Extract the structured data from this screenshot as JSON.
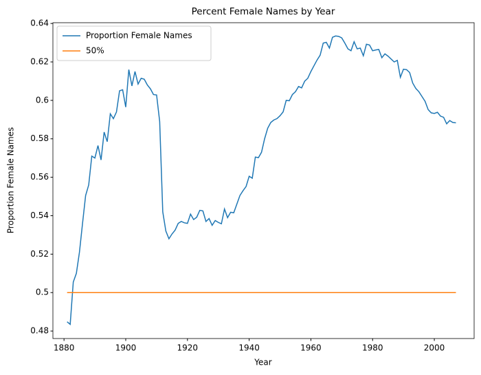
{
  "chart_data": {
    "type": "line",
    "title": "Percent Female Names by Year",
    "xlabel": "Year",
    "ylabel": "Proportion Female Names",
    "legend": "upper left",
    "grid": false,
    "xlim": [
      1876.4,
      2012.9
    ],
    "ylim": [
      0.4761,
      0.6404
    ],
    "xticks": [
      1880,
      1900,
      1920,
      1940,
      1960,
      1980,
      2000
    ],
    "yticks": [
      0.48,
      0.5,
      0.52,
      0.54,
      0.56,
      0.58,
      0.6,
      0.62,
      0.64
    ],
    "series": [
      {
        "name": "Proportion Female Names",
        "color": "#1f77b4",
        "x": [
          1881,
          1882,
          1883,
          1884,
          1885,
          1886,
          1887,
          1888,
          1889,
          1890,
          1891,
          1892,
          1893,
          1894,
          1895,
          1896,
          1897,
          1898,
          1899,
          1900,
          1901,
          1902,
          1903,
          1904,
          1905,
          1906,
          1907,
          1908,
          1909,
          1910,
          1911,
          1912,
          1913,
          1914,
          1915,
          1916,
          1917,
          1918,
          1919,
          1920,
          1921,
          1922,
          1923,
          1924,
          1925,
          1926,
          1927,
          1928,
          1929,
          1930,
          1931,
          1932,
          1933,
          1934,
          1935,
          1936,
          1937,
          1938,
          1939,
          1940,
          1941,
          1942,
          1943,
          1944,
          1945,
          1946,
          1947,
          1948,
          1949,
          1950,
          1951,
          1952,
          1953,
          1954,
          1955,
          1956,
          1957,
          1958,
          1959,
          1960,
          1961,
          1962,
          1963,
          1964,
          1965,
          1966,
          1967,
          1968,
          1969,
          1970,
          1971,
          1972,
          1973,
          1974,
          1975,
          1976,
          1977,
          1978,
          1979,
          1980,
          1981,
          1982,
          1983,
          1984,
          1985,
          1986,
          1987,
          1988,
          1989,
          1990,
          1991,
          1992,
          1993,
          1994,
          1995,
          1996,
          1997,
          1998,
          1999,
          2000,
          2001,
          2002,
          2003,
          2004,
          2005,
          2006,
          2007
        ],
        "values": [
          0.4848,
          0.4835,
          0.5055,
          0.51,
          0.521,
          0.536,
          0.5505,
          0.556,
          0.571,
          0.57,
          0.5765,
          0.569,
          0.5835,
          0.5785,
          0.593,
          0.5905,
          0.594,
          0.605,
          0.6055,
          0.5965,
          0.616,
          0.6075,
          0.615,
          0.6085,
          0.6115,
          0.611,
          0.608,
          0.606,
          0.603,
          0.6028,
          0.589,
          0.542,
          0.532,
          0.528,
          0.5305,
          0.5325,
          0.536,
          0.537,
          0.5363,
          0.536,
          0.5408,
          0.538,
          0.5392,
          0.5428,
          0.5425,
          0.537,
          0.5385,
          0.535,
          0.5375,
          0.5365,
          0.5358,
          0.5435,
          0.539,
          0.5418,
          0.5415,
          0.546,
          0.5505,
          0.553,
          0.5552,
          0.5605,
          0.5595,
          0.5705,
          0.5702,
          0.573,
          0.58,
          0.5855,
          0.5885,
          0.5898,
          0.5905,
          0.592,
          0.594,
          0.6,
          0.5998,
          0.603,
          0.6045,
          0.6072,
          0.6065,
          0.61,
          0.6115,
          0.615,
          0.618,
          0.621,
          0.6235,
          0.6298,
          0.6302,
          0.6272,
          0.6328,
          0.6335,
          0.6333,
          0.6325,
          0.6298,
          0.6268,
          0.6258,
          0.6305,
          0.6268,
          0.6272,
          0.6232,
          0.6292,
          0.6288,
          0.6258,
          0.6262,
          0.6265,
          0.6222,
          0.6242,
          0.623,
          0.6215,
          0.62,
          0.6208,
          0.612,
          0.6162,
          0.616,
          0.6145,
          0.609,
          0.6062,
          0.6045,
          0.602,
          0.5995,
          0.5952,
          0.5935,
          0.5932,
          0.5938,
          0.5918,
          0.5912,
          0.5878,
          0.5895,
          0.5885,
          0.5883
        ]
      },
      {
        "name": "50%",
        "color": "#ff7f0e",
        "x": [
          1881,
          2007
        ],
        "values": [
          0.5,
          0.5
        ]
      }
    ]
  }
}
